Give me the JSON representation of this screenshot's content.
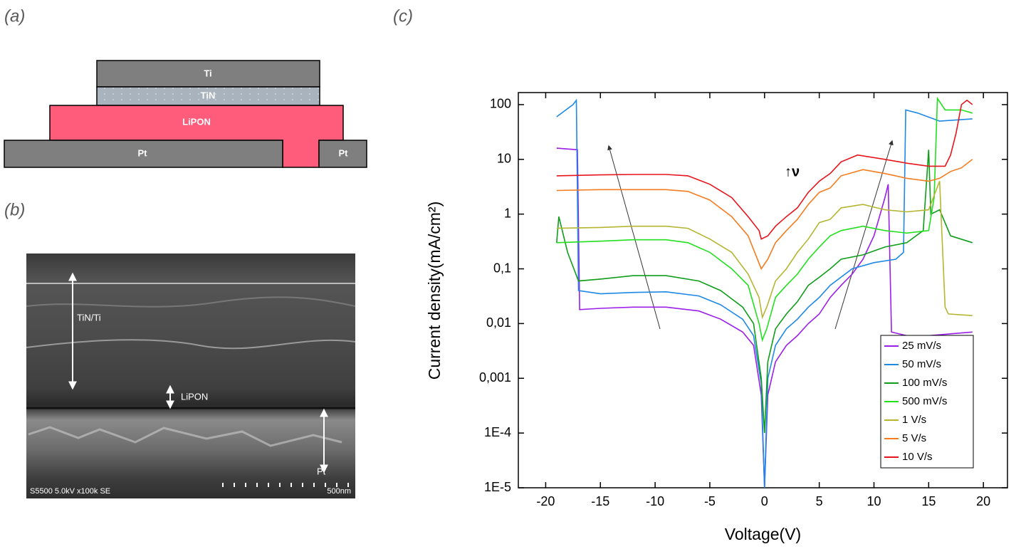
{
  "panel_a": {
    "label": "(a)",
    "layers": {
      "ti": "Ti",
      "tin": "TiN",
      "lipon": "LiPON",
      "pt_left": "Pt",
      "pt_right": "Pt"
    }
  },
  "panel_b": {
    "label": "(b)",
    "tin_ti": "TiN/Ti",
    "lipon": "LiPON",
    "pt": "Pt",
    "info": "S5500 5.0kV x100k SE",
    "scale": "500nm"
  },
  "panel_label_c": "(c)",
  "chart_data": {
    "type": "line",
    "xlabel": "Voltage(V)",
    "ylabel": "Current density(mA/cm²)",
    "annotation": "↑ν",
    "log_y": true,
    "legend": "lower right",
    "xlim": [
      -22.5,
      22.2
    ],
    "xticks": [
      -20,
      -15,
      -10,
      -5,
      0,
      5,
      10,
      15,
      20
    ],
    "ylim": [
      1e-05,
      166
    ],
    "yticks": [
      100,
      10,
      1,
      {
        "value": 0.1,
        "label": "0,1"
      },
      {
        "value": 0.01,
        "label": "0,01"
      },
      {
        "value": 0.001,
        "label": "0,001"
      },
      {
        "value": 0.0001,
        "label": "1E-4"
      },
      {
        "value": 1e-05,
        "label": "1E-5"
      }
    ],
    "series": [
      {
        "name": "25 mV/s",
        "color": "#9b1fe8",
        "x": [
          -19,
          -17.1,
          -16.9,
          -15,
          -12,
          -9,
          -6,
          -4,
          -2,
          -1,
          -0.3,
          0,
          0.3,
          1,
          2,
          3,
          4,
          5,
          6,
          7,
          8,
          9,
          10,
          11,
          11.3,
          11.6,
          13,
          15,
          17,
          19
        ],
        "values": [
          16,
          15,
          0.018,
          0.019,
          0.02,
          0.02,
          0.017,
          0.012,
          0.007,
          0.004,
          0.0005,
          1e-05,
          0.0005,
          0.002,
          0.004,
          0.006,
          0.01,
          0.015,
          0.03,
          0.05,
          0.08,
          0.15,
          0.4,
          2,
          3.5,
          0.007,
          0.006,
          0.006,
          0.0065,
          0.007
        ]
      },
      {
        "name": "50 mV/s",
        "color": "#1e88e5",
        "x": [
          -19,
          -17.5,
          -17.2,
          -17,
          -15,
          -12,
          -9,
          -6,
          -4,
          -2,
          -1,
          -0.3,
          0,
          0.3,
          1,
          2,
          3,
          4,
          5,
          6,
          8,
          10,
          12,
          12.7,
          12.9,
          14,
          16,
          19
        ],
        "values": [
          60,
          100,
          120,
          0.04,
          0.035,
          0.037,
          0.038,
          0.032,
          0.022,
          0.012,
          0.006,
          0.0008,
          1e-05,
          0.001,
          0.004,
          0.008,
          0.012,
          0.02,
          0.03,
          0.05,
          0.1,
          0.13,
          0.15,
          0.2,
          80,
          70,
          50,
          55
        ]
      },
      {
        "name": "100 mV/s",
        "color": "#0f9d1a",
        "x": [
          -19,
          -18.8,
          -18,
          -17,
          -15,
          -12,
          -9,
          -6,
          -4,
          -2,
          -1,
          -0.3,
          0,
          0.3,
          1,
          2,
          3,
          4,
          5,
          6,
          7,
          9,
          11,
          13,
          14.5,
          15,
          15.2,
          16,
          17,
          19
        ],
        "values": [
          0.3,
          0.9,
          0.2,
          0.06,
          0.065,
          0.075,
          0.075,
          0.06,
          0.04,
          0.02,
          0.01,
          0.001,
          0.0001,
          0.002,
          0.008,
          0.015,
          0.025,
          0.05,
          0.07,
          0.1,
          0.15,
          0.18,
          0.25,
          0.3,
          0.5,
          15,
          1,
          1.2,
          0.4,
          0.3
        ]
      },
      {
        "name": "500 mV/s",
        "color": "#22e01e",
        "x": [
          -19,
          -15,
          -12,
          -9,
          -7,
          -5,
          -3,
          -1.5,
          -0.5,
          -0.2,
          0.2,
          1,
          2,
          3,
          4,
          5,
          6,
          7,
          9,
          11,
          13,
          15,
          15.5,
          15.8,
          16.5,
          18,
          19
        ],
        "values": [
          0.3,
          0.32,
          0.34,
          0.34,
          0.3,
          0.2,
          0.1,
          0.05,
          0.01,
          0.005,
          0.008,
          0.03,
          0.05,
          0.08,
          0.15,
          0.25,
          0.4,
          0.5,
          0.6,
          0.5,
          0.45,
          0.5,
          2,
          130,
          80,
          80,
          70
        ]
      },
      {
        "name": "1 V/s",
        "color": "#b5b532",
        "x": [
          -19,
          -15,
          -12,
          -9,
          -7,
          -5,
          -3,
          -1.5,
          -0.5,
          -0.2,
          0.2,
          1,
          2,
          3,
          4,
          5,
          6,
          7,
          9,
          11,
          13,
          15,
          16,
          16.5,
          16.8,
          19
        ],
        "values": [
          0.55,
          0.57,
          0.6,
          0.6,
          0.55,
          0.35,
          0.2,
          0.08,
          0.03,
          0.013,
          0.02,
          0.06,
          0.1,
          0.2,
          0.35,
          0.7,
          0.8,
          1.3,
          1.5,
          1.2,
          1.1,
          1.2,
          4,
          0.02,
          0.015,
          0.014
        ]
      },
      {
        "name": "5 V/s",
        "color": "#f57c1f",
        "x": [
          -19,
          -15,
          -12,
          -9,
          -7,
          -5,
          -3,
          -1.5,
          -0.3,
          0.3,
          1,
          2,
          3,
          4,
          5,
          6,
          7,
          9,
          11,
          13,
          15,
          16,
          17,
          18,
          19
        ],
        "values": [
          2.7,
          2.8,
          2.8,
          2.8,
          2.6,
          1.8,
          0.9,
          0.4,
          0.1,
          0.15,
          0.3,
          0.5,
          0.8,
          1.5,
          2.5,
          3,
          5,
          6.5,
          5.5,
          4.5,
          4,
          4.5,
          6,
          7,
          10
        ]
      },
      {
        "name": "10 V/s",
        "color": "#e8141c",
        "x": [
          -19,
          -15,
          -12,
          -9,
          -7,
          -5,
          -3,
          -1.5,
          -0.5,
          -0.3,
          0.3,
          1,
          2,
          3,
          4,
          5,
          6,
          7,
          8.5,
          11,
          13,
          15,
          16.5,
          17,
          17.5,
          18,
          18.5,
          19
        ],
        "values": [
          5,
          5.2,
          5.3,
          5.3,
          5,
          3.5,
          2,
          0.9,
          0.5,
          0.35,
          0.4,
          0.6,
          0.9,
          1.3,
          2.5,
          4,
          5.5,
          9,
          12,
          10,
          8.5,
          7.5,
          7.5,
          12,
          30,
          100,
          120,
          100
        ]
      }
    ]
  }
}
